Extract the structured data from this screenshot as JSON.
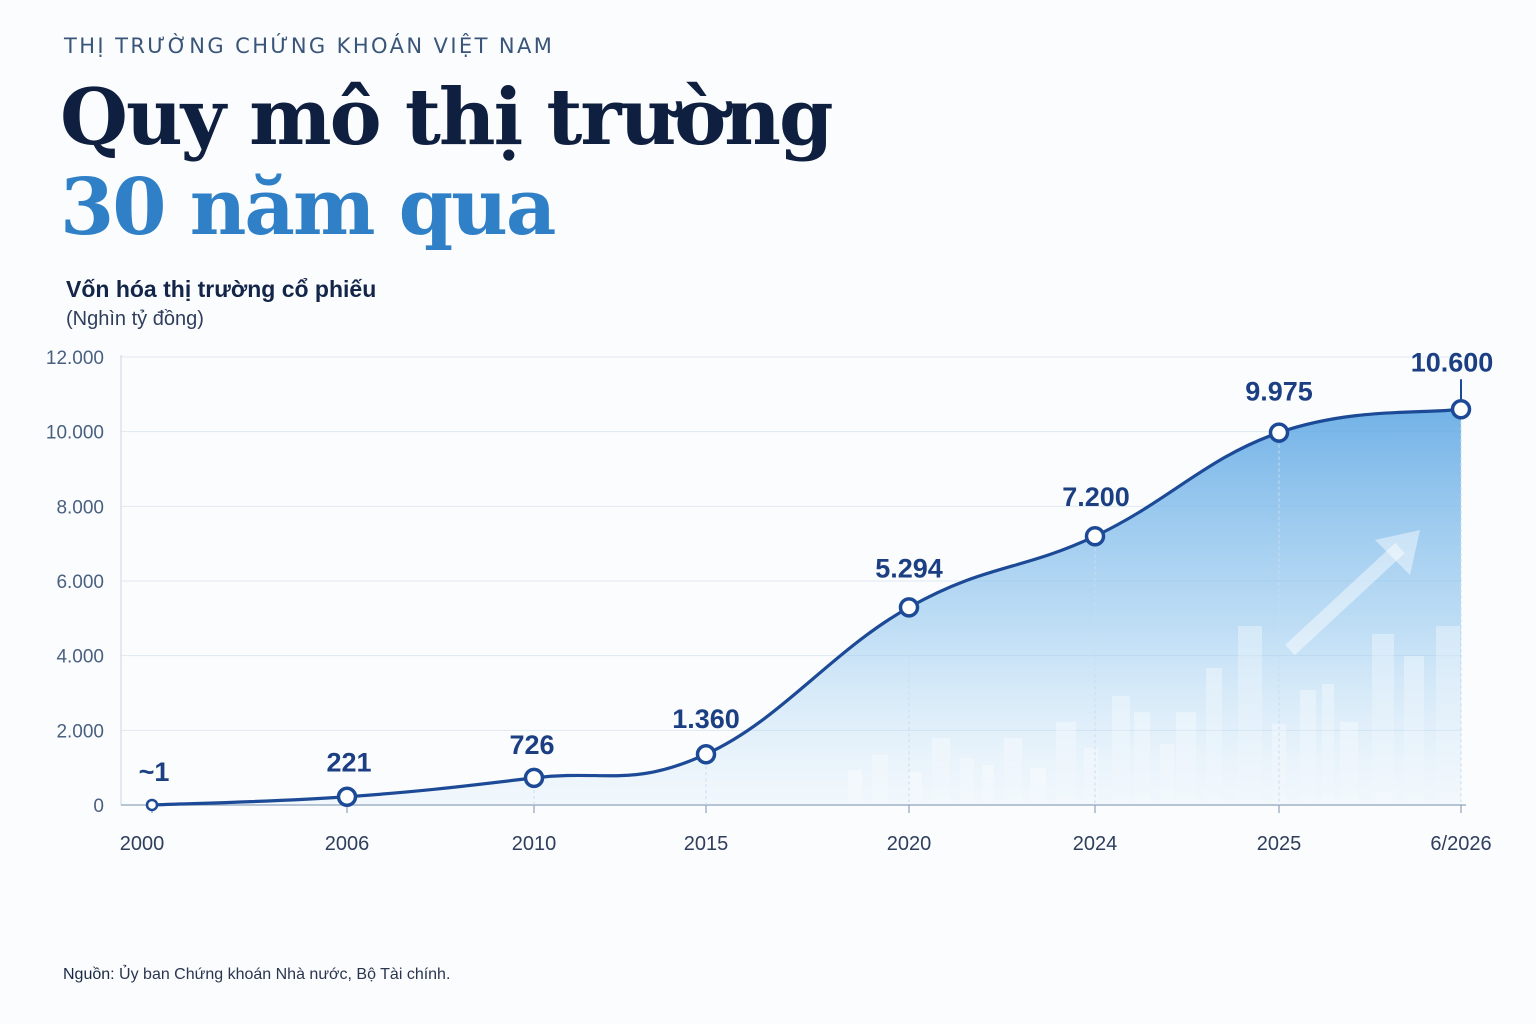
{
  "header": {
    "kicker": "THỊ TRƯỜNG CHỨNG KHOÁN VIỆT NAM",
    "title_line1": "Quy mô thị trường",
    "title_line2": "30 năm qua"
  },
  "chart_data": {
    "type": "area",
    "title": "Vốn hóa thị trường cổ phiếu",
    "unit": "(Nghìn tỷ đồng)",
    "categories": [
      "2000",
      "2006",
      "2010",
      "2015",
      "2020",
      "2024",
      "2025",
      "6/2026"
    ],
    "values": [
      1,
      221,
      726,
      1360,
      5294,
      7200,
      9975,
      10600
    ],
    "data_labels": [
      "~1",
      "221",
      "726",
      "1.360",
      "5.294",
      "7.200",
      "9.975",
      "10.600"
    ],
    "yticks": [
      0,
      2000,
      4000,
      6000,
      8000,
      10000,
      12000
    ],
    "ytick_labels": [
      "0",
      "2.000",
      "4.000",
      "6.000",
      "8.000",
      "10.000",
      "12.000"
    ],
    "ylim": [
      0,
      12000
    ],
    "grid": true,
    "colors": {
      "line": "#1d4a96",
      "fill": "#6fb0e6",
      "label": "#1b3f82",
      "accent": "#2f80c6"
    }
  },
  "source": {
    "label": "Nguồn:",
    "text": " Ủy ban Chứng khoán Nhà nước, Bộ Tài chính."
  }
}
